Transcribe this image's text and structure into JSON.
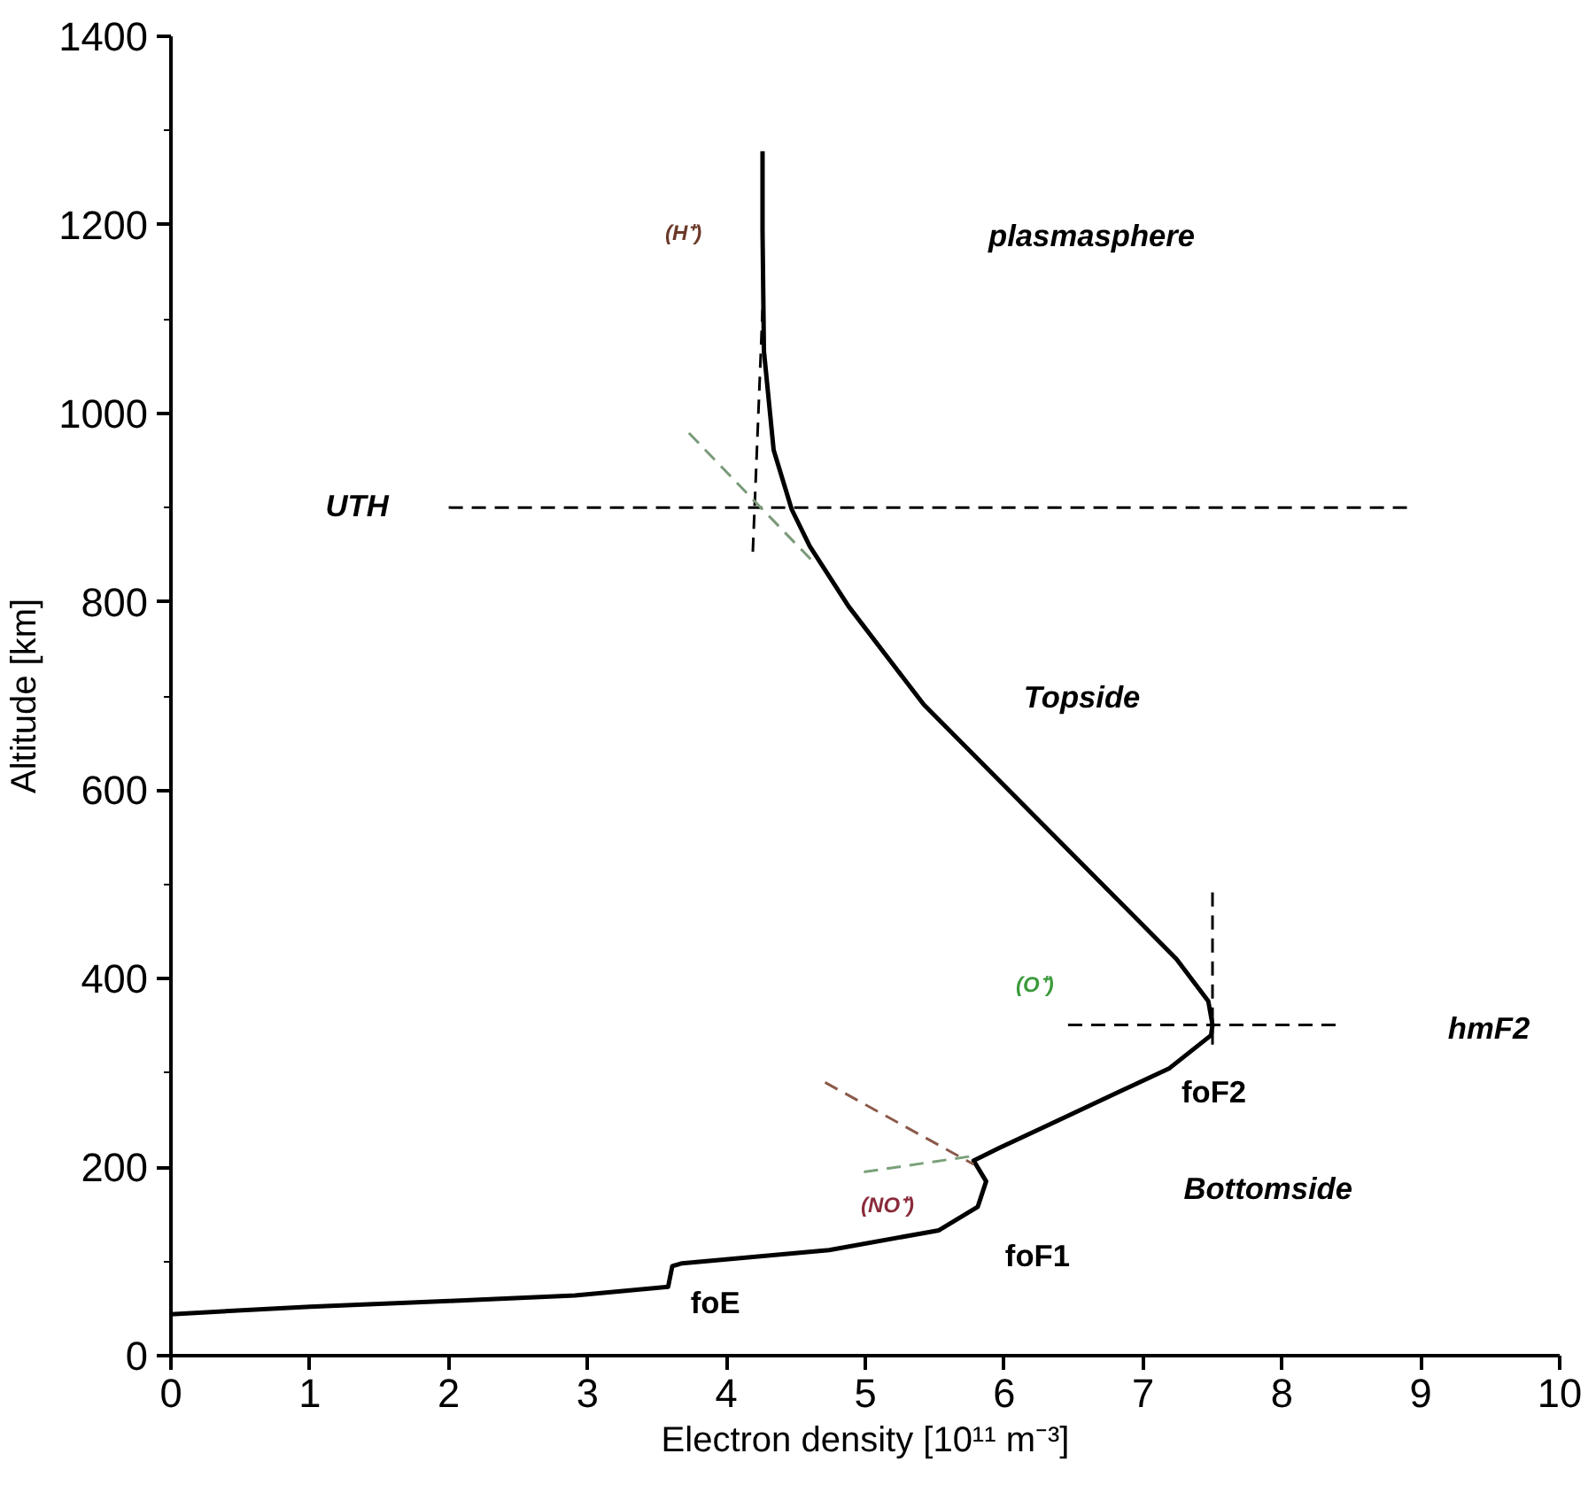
{
  "chart_data": {
    "type": "line",
    "xlabel": "Electron density [10¹¹ m⁻³]",
    "ylabel": "Altitude [km]",
    "xlim": [
      0,
      10
    ],
    "ylim": [
      0,
      1400
    ],
    "xticks": [
      0,
      1,
      2,
      3,
      4,
      5,
      6,
      7,
      8,
      9,
      10
    ],
    "yticks": [
      0,
      200,
      400,
      600,
      800,
      1000,
      1200,
      1400
    ],
    "grid": false,
    "series": [
      {
        "color": "#000000",
        "line_style": "solid",
        "x": [
          0,
          1,
          2,
          2.91,
          3.58,
          3.61,
          3.68,
          4.74,
          5.53,
          5.81,
          5.87,
          5.78,
          5.96,
          7.19,
          7.49,
          7.5,
          7.47,
          7.24,
          6.33,
          5.42,
          4.88,
          4.6,
          4.47,
          4.34,
          4.27,
          4.26,
          4.26
        ],
        "values": [
          44,
          52,
          58,
          64,
          73,
          95,
          98,
          112,
          133,
          158,
          185,
          207,
          220,
          305,
          340,
          351,
          376,
          421,
          556,
          691,
          795,
          859,
          898,
          961,
          1066,
          1193,
          1278
        ]
      },
      {
        "color": "#000000",
        "line_style": "dashed",
        "x": [
          2.0,
          8.9
        ],
        "values": [
          900,
          900
        ]
      },
      {
        "color": "#000000",
        "line_style": "dashed",
        "x": [
          4.19,
          4.26
        ],
        "values": [
          853,
          1110
        ]
      },
      {
        "color": "#7a9a7a",
        "line_style": "dashed",
        "x": [
          3.73,
          4.64
        ],
        "values": [
          979,
          840
        ]
      },
      {
        "color": "#000000",
        "line_style": "dashed",
        "x": [
          6.46,
          8.44
        ],
        "values": [
          351,
          351
        ]
      },
      {
        "color": "#000000",
        "line_style": "dashed",
        "x": [
          7.5,
          7.5
        ],
        "values": [
          330,
          498
        ]
      },
      {
        "color": "#8a5a4a",
        "line_style": "dashed",
        "x": [
          4.71,
          5.78
        ],
        "values": [
          290,
          203
        ]
      },
      {
        "color": "#7aa07a",
        "line_style": "dashed",
        "x": [
          4.99,
          5.78
        ],
        "values": [
          195,
          212
        ]
      }
    ],
    "annotations": [
      "plasmasphere",
      "(H⁺)",
      "UTH",
      "Topside",
      "(O⁺)",
      "hmF2",
      "foF2",
      "Bottomside",
      "(NO⁺)",
      "foF1",
      "foE"
    ]
  }
}
